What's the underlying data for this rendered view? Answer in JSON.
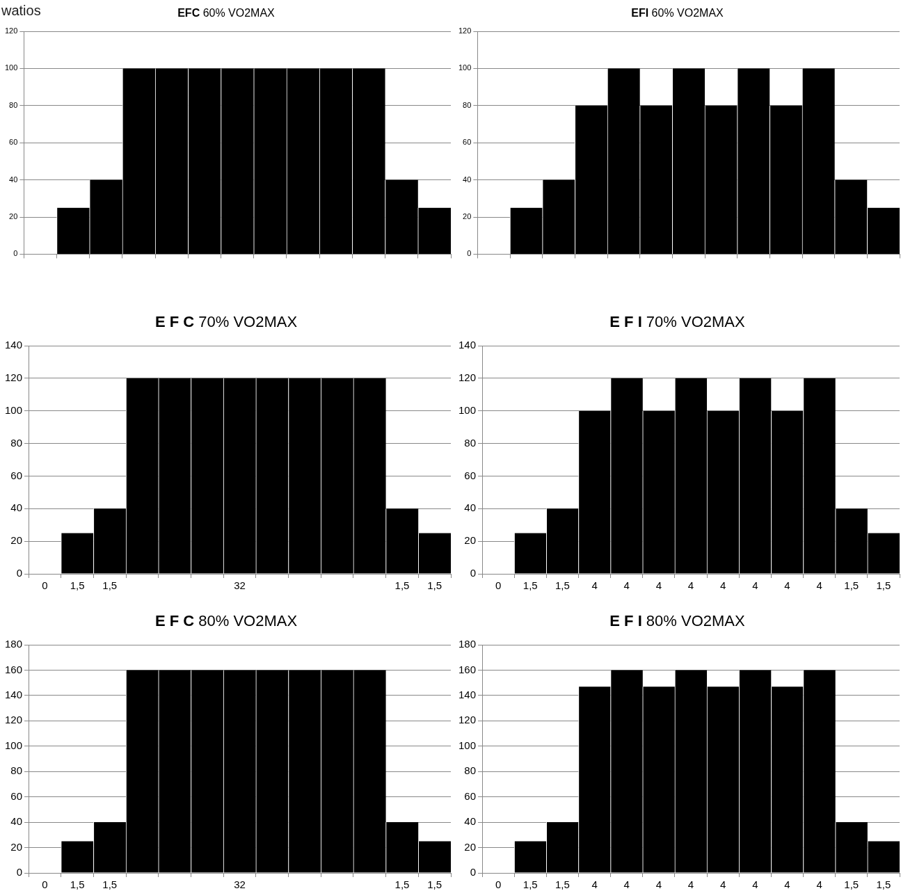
{
  "chart_data": [
    {
      "type": "bar",
      "title": "EFC 60% VO2MAX",
      "ylabel": "watios",
      "categories": [
        null,
        null,
        null,
        null,
        null,
        null,
        null,
        null,
        null,
        null,
        null,
        null,
        null
      ],
      "values": [
        0,
        25,
        40,
        100,
        100,
        100,
        100,
        100,
        100,
        100,
        100,
        40,
        25
      ],
      "color": "#000000",
      "ylim": [
        0,
        120
      ],
      "yticks": [
        0,
        20,
        40,
        60,
        80,
        100,
        120
      ],
      "grid": "y",
      "tick_labels": "y"
    },
    {
      "type": "bar",
      "title": "EFI 60% VO2MAX",
      "categories": [
        null,
        null,
        null,
        null,
        null,
        null,
        null,
        null,
        null,
        null,
        null,
        null,
        null
      ],
      "values": [
        0,
        25,
        40,
        80,
        100,
        80,
        100,
        80,
        100,
        80,
        100,
        40,
        25
      ],
      "color": "#000000",
      "ylim": [
        0,
        120
      ],
      "yticks": [
        0,
        20,
        40,
        60,
        80,
        100,
        120
      ],
      "grid": "y",
      "tick_labels": "y"
    },
    {
      "type": "bar",
      "title": "E F C 70% VO2MAX",
      "categories": [
        "0",
        "1,5",
        "1,5",
        null,
        null,
        null,
        "32",
        null,
        null,
        null,
        null,
        "1,5",
        "1,5"
      ],
      "values": [
        0,
        25,
        40,
        120,
        120,
        120,
        120,
        120,
        120,
        120,
        120,
        40,
        25
      ],
      "color": "#000000",
      "ylim": [
        0,
        140
      ],
      "yticks": [
        0,
        20,
        40,
        60,
        80,
        100,
        120,
        140
      ],
      "grid": "y"
    },
    {
      "type": "bar",
      "title": "E F I 70% VO2MAX",
      "categories": [
        "0",
        "1,5",
        "1,5",
        "4",
        "4",
        "4",
        "4",
        "4",
        "4",
        "4",
        "4",
        "1,5",
        "1,5"
      ],
      "values": [
        0,
        25,
        40,
        100,
        120,
        100,
        120,
        100,
        120,
        100,
        120,
        40,
        25
      ],
      "color": "#000000",
      "ylim": [
        0,
        140
      ],
      "yticks": [
        0,
        20,
        40,
        60,
        80,
        100,
        120,
        140
      ],
      "grid": "y"
    },
    {
      "type": "bar",
      "title": "E F C 80% VO2MAX",
      "categories": [
        "0",
        "1,5",
        "1,5",
        null,
        null,
        null,
        "32",
        null,
        null,
        null,
        null,
        "1,5",
        "1,5"
      ],
      "values": [
        0,
        25,
        40,
        160,
        160,
        160,
        160,
        160,
        160,
        160,
        160,
        40,
        25
      ],
      "color": "#000000",
      "ylim": [
        0,
        180
      ],
      "yticks": [
        0,
        20,
        40,
        60,
        80,
        100,
        120,
        140,
        160,
        180
      ],
      "grid": "y"
    },
    {
      "type": "bar",
      "title": "E F I 80% VO2MAX",
      "categories": [
        "0",
        "1,5",
        "1,5",
        "4",
        "4",
        "4",
        "4",
        "4",
        "4",
        "4",
        "4",
        "1,5",
        "1,5"
      ],
      "values": [
        0,
        25,
        40,
        147,
        160,
        147,
        160,
        147,
        160,
        147,
        160,
        40,
        25
      ],
      "color": "#000000",
      "ylim": [
        0,
        180
      ],
      "yticks": [
        0,
        20,
        40,
        60,
        80,
        100,
        120,
        140,
        160,
        180
      ],
      "grid": "y"
    }
  ]
}
